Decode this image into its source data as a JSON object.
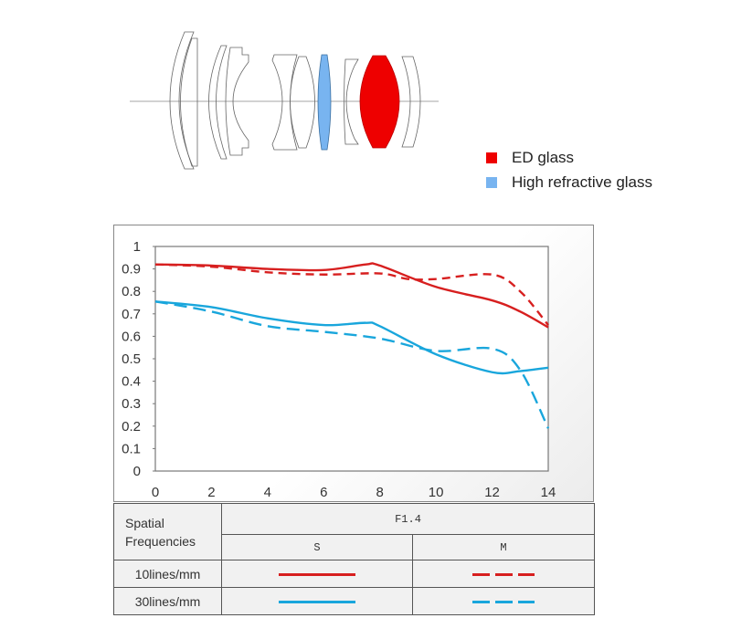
{
  "lens_diagram": {
    "legend": [
      {
        "label": "ED glass",
        "color": "#ee0000"
      },
      {
        "label": "High refractive glass",
        "color": "#78b4f0"
      }
    ]
  },
  "colors": {
    "line_10": "#d71f1f",
    "line_30": "#19a6dc"
  },
  "chart_data": {
    "type": "line",
    "title": "",
    "xlabel": "",
    "ylabel": "",
    "xlim": [
      0,
      14
    ],
    "ylim": [
      0,
      1
    ],
    "x_ticks": [
      "0",
      "2",
      "4",
      "6",
      "8",
      "10",
      "12",
      "14"
    ],
    "y_ticks": [
      "0",
      "0.1",
      "0.2",
      "0.3",
      "0.4",
      "0.5",
      "0.6",
      "0.7",
      "0.8",
      "0.9",
      "1"
    ],
    "grid": true,
    "series": [
      {
        "name": "10lines/mm S",
        "style": "solid",
        "color": "#d71f1f",
        "x": [
          0,
          2,
          4,
          6,
          7.5,
          8,
          10,
          12,
          13,
          14
        ],
        "y": [
          0.92,
          0.915,
          0.9,
          0.895,
          0.92,
          0.915,
          0.82,
          0.76,
          0.71,
          0.64
        ]
      },
      {
        "name": "10lines/mm M",
        "style": "dashed",
        "color": "#d71f1f",
        "x": [
          0,
          2,
          4,
          6,
          8,
          9,
          10,
          12,
          13,
          14
        ],
        "y": [
          0.92,
          0.91,
          0.885,
          0.875,
          0.88,
          0.855,
          0.855,
          0.875,
          0.8,
          0.65
        ]
      },
      {
        "name": "30lines/mm S",
        "style": "solid",
        "color": "#19a6dc",
        "x": [
          0,
          2,
          4,
          6,
          7.5,
          8,
          10,
          12,
          13,
          14
        ],
        "y": [
          0.755,
          0.73,
          0.68,
          0.65,
          0.66,
          0.645,
          0.52,
          0.44,
          0.445,
          0.46
        ]
      },
      {
        "name": "30lines/mm M",
        "style": "dashed",
        "color": "#19a6dc",
        "x": [
          0,
          2,
          4,
          6,
          8,
          10,
          12,
          13,
          14
        ],
        "y": [
          0.755,
          0.71,
          0.645,
          0.62,
          0.59,
          0.535,
          0.545,
          0.45,
          0.19
        ]
      }
    ]
  },
  "legend_table": {
    "header_left": "Spatial Frequencies",
    "aperture": "F1.4",
    "col_s": "S",
    "col_m": "M",
    "rows": [
      {
        "label": "10lines/mm"
      },
      {
        "label": "30lines/mm"
      }
    ]
  }
}
